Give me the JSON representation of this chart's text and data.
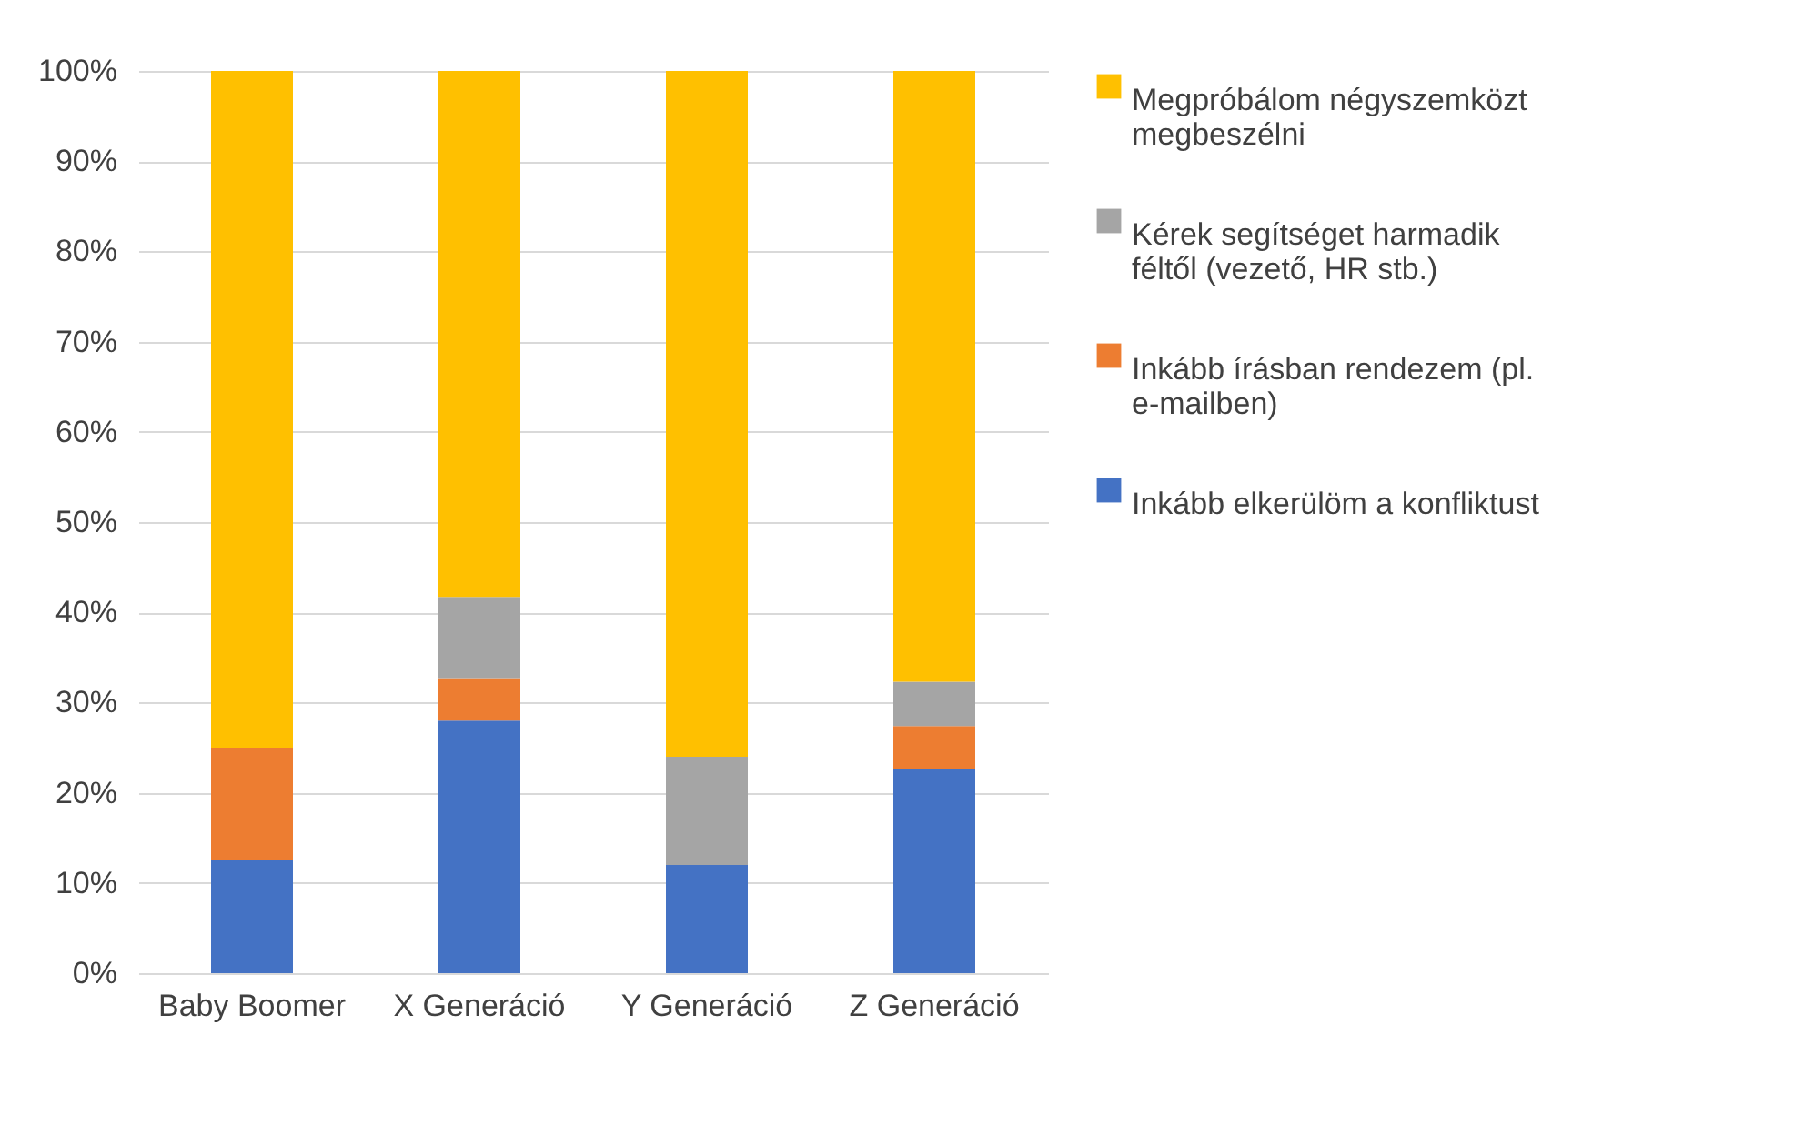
{
  "chart_data": {
    "type": "bar",
    "stacked": true,
    "categories": [
      "Baby Boomer",
      "X Generáció",
      "Y Generáció",
      "Z Generáció"
    ],
    "series": [
      {
        "name": "Inkább elkerülöm a konfliktust",
        "color": "#4472c4",
        "values": [
          12.5,
          28,
          12,
          22.6
        ]
      },
      {
        "name": "Inkább írásban rendezem (pl. e-mailben)",
        "color": "#ed7d31",
        "values": [
          12.5,
          4.7,
          0,
          4.8
        ]
      },
      {
        "name": "Kérek segítséget harmadik féltől (vezető, HR stb.)",
        "color": "#a5a5a5",
        "values": [
          0,
          9,
          12,
          4.9
        ]
      },
      {
        "name": "Megpróbálom négyszemközt megbeszélni",
        "color": "#ffc000",
        "values": [
          75,
          58.3,
          76,
          67.7
        ]
      }
    ],
    "ylim": [
      0,
      100
    ],
    "yticks": [
      {
        "value": 0,
        "label": "0%"
      },
      {
        "value": 10,
        "label": "10%"
      },
      {
        "value": 20,
        "label": "20%"
      },
      {
        "value": 30,
        "label": "30%"
      },
      {
        "value": 40,
        "label": "40%"
      },
      {
        "value": 50,
        "label": "50%"
      },
      {
        "value": 60,
        "label": "60%"
      },
      {
        "value": 70,
        "label": "70%"
      },
      {
        "value": 80,
        "label": "80%"
      },
      {
        "value": 90,
        "label": "90%"
      },
      {
        "value": 100,
        "label": "100%"
      }
    ],
    "grid": "y",
    "legend": "right"
  }
}
